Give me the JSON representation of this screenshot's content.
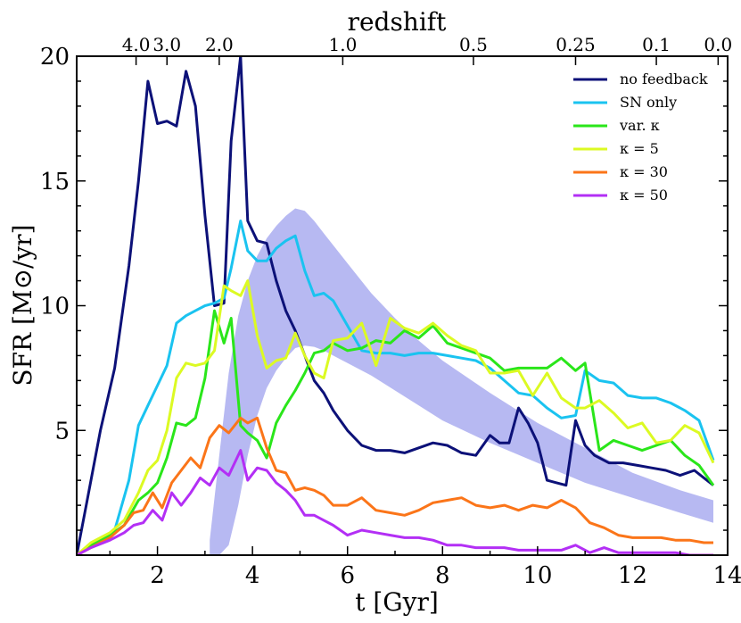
{
  "chart_data": {
    "type": "line",
    "xlabel": "t [Gyr]",
    "ylabel": "SFR [M⊙/yr]",
    "top_axis_label": "redshift",
    "xlim": [
      0.3,
      14
    ],
    "ylim": [
      0,
      20
    ],
    "x_ticks": [
      2,
      4,
      6,
      8,
      10,
      12,
      14
    ],
    "y_ticks": [
      5,
      10,
      15,
      20
    ],
    "top_ticks": [
      {
        "label": "4.0",
        "t": 1.55
      },
      {
        "label": "3.0",
        "t": 2.2
      },
      {
        "label": "2.0",
        "t": 3.3
      },
      {
        "label": "1.0",
        "t": 5.9
      },
      {
        "label": "0.5",
        "t": 8.65
      },
      {
        "label": "0.25",
        "t": 10.8
      },
      {
        "label": "0.1",
        "t": 12.5
      },
      {
        "label": "0.0",
        "t": 13.8
      }
    ],
    "band": {
      "color": "#b7b9f2",
      "x": [
        3.1,
        3.3,
        3.5,
        3.7,
        3.9,
        4.1,
        4.3,
        4.5,
        4.7,
        4.9,
        5.1,
        5.3,
        5.5,
        6.0,
        6.5,
        7.0,
        7.5,
        8.0,
        9.0,
        10.0,
        11.0,
        12.0,
        13.0,
        13.7
      ],
      "upper": [
        0.6,
        4.0,
        7.3,
        9.6,
        11.0,
        12.0,
        12.7,
        13.2,
        13.6,
        13.9,
        13.8,
        13.4,
        12.9,
        11.7,
        10.5,
        9.5,
        8.6,
        7.8,
        6.5,
        5.3,
        4.3,
        3.3,
        2.6,
        2.2
      ],
      "lower": [
        0.0,
        0.0,
        0.4,
        2.0,
        4.0,
        5.6,
        6.7,
        7.4,
        7.9,
        8.3,
        8.4,
        8.35,
        8.2,
        7.7,
        7.2,
        6.6,
        6.0,
        5.4,
        4.5,
        3.7,
        2.9,
        2.3,
        1.7,
        1.3
      ]
    },
    "series": [
      {
        "name": "no feedback",
        "legend": "no feedback",
        "color": "#0c1178",
        "x": [
          0.3,
          0.5,
          0.8,
          1.1,
          1.4,
          1.6,
          1.8,
          2.0,
          2.2,
          2.4,
          2.6,
          2.8,
          3.0,
          3.2,
          3.4,
          3.55,
          3.75,
          3.9,
          4.1,
          4.3,
          4.5,
          4.7,
          4.9,
          5.1,
          5.3,
          5.5,
          5.7,
          6.0,
          6.3,
          6.6,
          6.9,
          7.2,
          7.5,
          7.8,
          8.1,
          8.4,
          8.7,
          9.0,
          9.2,
          9.4,
          9.6,
          9.8,
          10.0,
          10.2,
          10.4,
          10.6,
          10.8,
          11.0,
          11.2,
          11.5,
          11.8,
          12.1,
          12.4,
          12.7,
          13.0,
          13.3,
          13.5,
          13.7
        ],
        "y": [
          0.0,
          2.0,
          5.0,
          7.5,
          11.6,
          15.0,
          19.0,
          17.3,
          17.4,
          17.2,
          19.4,
          18.0,
          13.6,
          10.0,
          10.1,
          16.6,
          20.0,
          13.4,
          12.6,
          12.5,
          11.0,
          9.8,
          9.0,
          8.0,
          7.0,
          6.5,
          5.8,
          5.0,
          4.4,
          4.2,
          4.2,
          4.1,
          4.3,
          4.5,
          4.4,
          4.1,
          4.0,
          4.8,
          4.5,
          4.5,
          5.9,
          5.3,
          4.5,
          3.0,
          2.9,
          2.8,
          5.4,
          4.4,
          4.0,
          3.7,
          3.7,
          3.6,
          3.5,
          3.4,
          3.2,
          3.4,
          3.1,
          2.8
        ]
      },
      {
        "name": "SN only",
        "legend": "SN only",
        "color": "#1ac3f0",
        "x": [
          0.3,
          0.5,
          0.8,
          1.1,
          1.4,
          1.6,
          1.8,
          2.0,
          2.2,
          2.4,
          2.6,
          2.8,
          3.0,
          3.2,
          3.4,
          3.55,
          3.75,
          3.9,
          4.1,
          4.3,
          4.5,
          4.7,
          4.9,
          5.1,
          5.3,
          5.5,
          5.7,
          6.0,
          6.3,
          6.6,
          6.9,
          7.2,
          7.5,
          7.8,
          8.1,
          8.4,
          8.7,
          9.0,
          9.3,
          9.6,
          9.9,
          10.2,
          10.5,
          10.8,
          11.0,
          11.3,
          11.6,
          11.9,
          12.2,
          12.5,
          12.8,
          13.1,
          13.4,
          13.7
        ],
        "y": [
          0.0,
          0.3,
          0.6,
          1.0,
          3.0,
          5.2,
          6.0,
          6.8,
          7.6,
          9.3,
          9.6,
          9.8,
          10.0,
          10.1,
          10.3,
          11.5,
          13.4,
          12.2,
          11.8,
          11.8,
          12.3,
          12.6,
          12.8,
          11.4,
          10.4,
          10.5,
          10.2,
          9.2,
          8.2,
          8.1,
          8.1,
          8.0,
          8.1,
          8.1,
          8.0,
          7.9,
          7.8,
          7.5,
          7.0,
          6.5,
          6.4,
          5.9,
          5.5,
          5.6,
          7.4,
          7.0,
          6.9,
          6.4,
          6.3,
          6.3,
          6.1,
          5.8,
          5.4,
          3.8
        ]
      },
      {
        "name": "var. kappa",
        "legend": "var. κ",
        "color": "#2ae61a",
        "x": [
          0.3,
          0.6,
          1.0,
          1.3,
          1.6,
          1.8,
          2.0,
          2.2,
          2.4,
          2.6,
          2.8,
          3.0,
          3.2,
          3.4,
          3.55,
          3.75,
          3.9,
          4.1,
          4.3,
          4.5,
          4.7,
          4.9,
          5.1,
          5.3,
          5.5,
          5.7,
          6.0,
          6.3,
          6.6,
          6.9,
          7.2,
          7.5,
          7.8,
          8.1,
          8.4,
          8.7,
          9.0,
          9.3,
          9.6,
          9.9,
          10.2,
          10.5,
          10.8,
          11.0,
          11.3,
          11.6,
          11.9,
          12.2,
          12.5,
          12.8,
          13.1,
          13.4,
          13.7
        ],
        "y": [
          0.0,
          0.4,
          0.8,
          1.2,
          2.2,
          2.5,
          2.9,
          3.9,
          5.3,
          5.2,
          5.5,
          7.1,
          9.8,
          8.5,
          9.5,
          5.2,
          4.9,
          4.6,
          3.9,
          5.3,
          6.0,
          6.6,
          7.3,
          8.1,
          8.2,
          8.5,
          8.2,
          8.3,
          8.6,
          8.5,
          9.0,
          8.7,
          9.2,
          8.5,
          8.3,
          8.1,
          7.9,
          7.4,
          7.5,
          7.5,
          7.5,
          7.9,
          7.4,
          7.7,
          4.2,
          4.6,
          4.4,
          4.2,
          4.4,
          4.6,
          4.0,
          3.6,
          2.8
        ]
      },
      {
        "name": "kappa = 5",
        "legend": "κ = 5",
        "color": "#dcfa23",
        "x": [
          0.3,
          0.6,
          1.0,
          1.3,
          1.6,
          1.8,
          2.0,
          2.2,
          2.4,
          2.6,
          2.8,
          3.0,
          3.2,
          3.4,
          3.55,
          3.75,
          3.9,
          4.1,
          4.3,
          4.5,
          4.7,
          4.9,
          5.1,
          5.3,
          5.5,
          5.7,
          6.0,
          6.3,
          6.6,
          6.9,
          7.2,
          7.5,
          7.8,
          8.1,
          8.4,
          8.7,
          9.0,
          9.3,
          9.6,
          9.9,
          10.2,
          10.5,
          10.8,
          11.0,
          11.3,
          11.6,
          11.9,
          12.2,
          12.5,
          12.8,
          13.1,
          13.4,
          13.7
        ],
        "y": [
          0.0,
          0.5,
          0.9,
          1.4,
          2.5,
          3.4,
          3.8,
          5.0,
          7.1,
          7.7,
          7.6,
          7.7,
          8.2,
          10.8,
          10.6,
          10.4,
          11.0,
          8.8,
          7.5,
          7.8,
          7.9,
          8.9,
          8.0,
          7.3,
          7.1,
          8.6,
          8.7,
          9.3,
          7.6,
          9.5,
          9.1,
          8.9,
          9.3,
          8.8,
          8.4,
          8.2,
          7.3,
          7.3,
          7.4,
          6.4,
          7.3,
          6.3,
          5.9,
          5.9,
          6.2,
          5.7,
          5.1,
          5.3,
          4.5,
          4.6,
          5.2,
          4.9,
          3.7
        ]
      },
      {
        "name": "kappa = 30",
        "legend": "κ = 30",
        "color": "#fb7519",
        "x": [
          0.3,
          0.6,
          1.0,
          1.3,
          1.5,
          1.7,
          1.9,
          2.1,
          2.3,
          2.5,
          2.7,
          2.9,
          3.1,
          3.3,
          3.5,
          3.75,
          3.9,
          4.1,
          4.3,
          4.5,
          4.7,
          4.9,
          5.1,
          5.3,
          5.5,
          5.7,
          6.0,
          6.3,
          6.6,
          6.9,
          7.2,
          7.5,
          7.8,
          8.1,
          8.4,
          8.7,
          9.0,
          9.3,
          9.6,
          9.9,
          10.2,
          10.5,
          10.8,
          11.1,
          11.4,
          11.7,
          12.0,
          12.3,
          12.6,
          12.9,
          13.2,
          13.5,
          13.7
        ],
        "y": [
          0.0,
          0.3,
          0.7,
          1.2,
          1.7,
          1.8,
          2.5,
          1.9,
          2.9,
          3.4,
          3.9,
          3.5,
          4.7,
          5.2,
          4.9,
          5.5,
          5.3,
          5.5,
          4.3,
          3.4,
          3.3,
          2.6,
          2.7,
          2.6,
          2.4,
          2.0,
          2.0,
          2.3,
          1.8,
          1.7,
          1.6,
          1.8,
          2.1,
          2.2,
          2.3,
          2.0,
          1.9,
          2.0,
          1.8,
          2.0,
          1.9,
          2.2,
          1.9,
          1.3,
          1.1,
          0.8,
          0.7,
          0.7,
          0.7,
          0.6,
          0.6,
          0.5,
          0.5
        ]
      },
      {
        "name": "kappa = 50",
        "legend": "κ = 50",
        "color": "#b32ff5",
        "x": [
          0.3,
          0.6,
          1.0,
          1.3,
          1.5,
          1.7,
          1.9,
          2.1,
          2.3,
          2.5,
          2.7,
          2.9,
          3.1,
          3.3,
          3.5,
          3.75,
          3.9,
          4.1,
          4.3,
          4.5,
          4.7,
          4.9,
          5.1,
          5.3,
          5.5,
          5.7,
          6.0,
          6.3,
          6.6,
          6.9,
          7.2,
          7.5,
          7.8,
          8.1,
          8.4,
          8.7,
          9.0,
          9.3,
          9.6,
          9.9,
          10.2,
          10.5,
          10.8,
          11.1,
          11.4,
          11.7,
          12.0,
          12.3,
          12.6,
          12.9,
          13.2,
          13.5,
          13.7
        ],
        "y": [
          0.0,
          0.3,
          0.6,
          0.9,
          1.2,
          1.3,
          1.8,
          1.4,
          2.5,
          2.0,
          2.5,
          3.1,
          2.8,
          3.5,
          3.2,
          4.2,
          3.0,
          3.5,
          3.4,
          2.9,
          2.6,
          2.2,
          1.6,
          1.6,
          1.4,
          1.2,
          0.8,
          1.0,
          0.9,
          0.8,
          0.7,
          0.7,
          0.6,
          0.4,
          0.4,
          0.3,
          0.3,
          0.3,
          0.2,
          0.2,
          0.2,
          0.2,
          0.4,
          0.1,
          0.3,
          0.1,
          0.1,
          0.1,
          0.1,
          0.1,
          0.0,
          0.0,
          0.0
        ]
      }
    ]
  }
}
